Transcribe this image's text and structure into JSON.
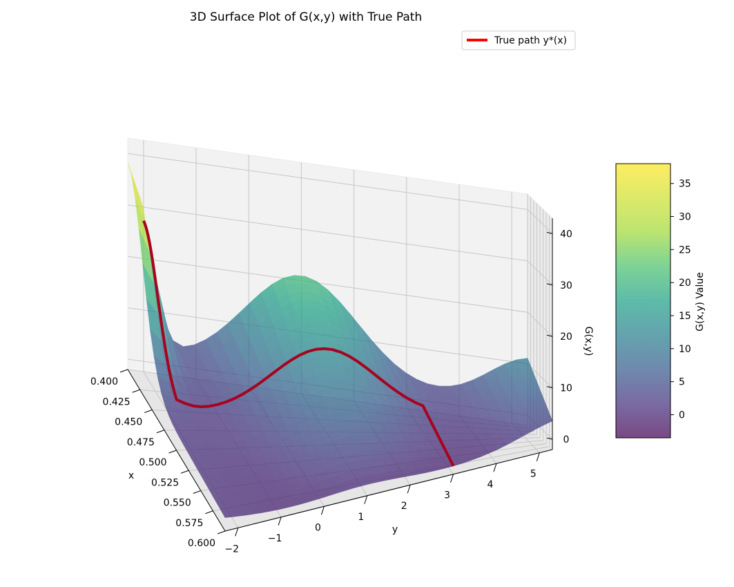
{
  "chart_data": {
    "type": "surface3d",
    "title": "3D Surface Plot of G(x,y) with True Path",
    "xlabel": "x",
    "ylabel": "y",
    "zlabel": "G(x,y)",
    "x_ticks": [
      "0.400",
      "0.425",
      "0.450",
      "0.475",
      "0.500",
      "0.525",
      "0.550",
      "0.575",
      "0.600"
    ],
    "y_ticks": [
      "−2",
      "−1",
      "0",
      "1",
      "2",
      "3",
      "4",
      "5"
    ],
    "z_ticks": [
      "0",
      "10",
      "20",
      "30",
      "40"
    ],
    "xlim": [
      0.4,
      0.6
    ],
    "ylim": [
      -2.3,
      5.3
    ],
    "zlim": [
      -2,
      43
    ],
    "legend": {
      "label": "True path y*(x)",
      "color": "#ff0000",
      "placement": "top-right"
    },
    "colorbar": {
      "label": "G(x,y) Value",
      "ticks": [
        "0",
        "5",
        "10",
        "15",
        "20",
        "25",
        "30",
        "35"
      ],
      "range": [
        -3.5,
        38
      ],
      "colormap": "viridis"
    },
    "path_xy": [
      [
        0.4,
        -2.0
      ],
      [
        0.47,
        -2.0
      ],
      [
        0.47,
        3.0
      ],
      [
        0.6,
        3.0
      ]
    ]
  }
}
